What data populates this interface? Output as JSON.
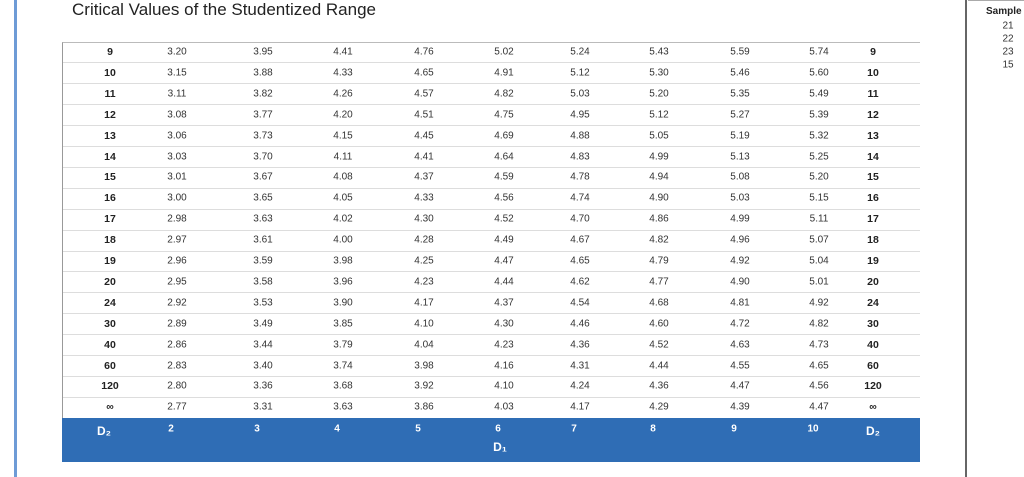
{
  "title": "Critical Values of the Studentized Range",
  "table": {
    "rows": [
      {
        "df": "9",
        "values": [
          "3.20",
          "3.95",
          "4.41",
          "4.76",
          "5.02",
          "5.24",
          "5.43",
          "5.59",
          "5.74"
        ]
      },
      {
        "df": "10",
        "values": [
          "3.15",
          "3.88",
          "4.33",
          "4.65",
          "4.91",
          "5.12",
          "5.30",
          "5.46",
          "5.60"
        ]
      },
      {
        "df": "11",
        "values": [
          "3.11",
          "3.82",
          "4.26",
          "4.57",
          "4.82",
          "5.03",
          "5.20",
          "5.35",
          "5.49"
        ]
      },
      {
        "df": "12",
        "values": [
          "3.08",
          "3.77",
          "4.20",
          "4.51",
          "4.75",
          "4.95",
          "5.12",
          "5.27",
          "5.39"
        ]
      },
      {
        "df": "13",
        "values": [
          "3.06",
          "3.73",
          "4.15",
          "4.45",
          "4.69",
          "4.88",
          "5.05",
          "5.19",
          "5.32"
        ]
      },
      {
        "df": "14",
        "values": [
          "3.03",
          "3.70",
          "4.11",
          "4.41",
          "4.64",
          "4.83",
          "4.99",
          "5.13",
          "5.25"
        ]
      },
      {
        "df": "15",
        "values": [
          "3.01",
          "3.67",
          "4.08",
          "4.37",
          "4.59",
          "4.78",
          "4.94",
          "5.08",
          "5.20"
        ]
      },
      {
        "df": "16",
        "values": [
          "3.00",
          "3.65",
          "4.05",
          "4.33",
          "4.56",
          "4.74",
          "4.90",
          "5.03",
          "5.15"
        ]
      },
      {
        "df": "17",
        "values": [
          "2.98",
          "3.63",
          "4.02",
          "4.30",
          "4.52",
          "4.70",
          "4.86",
          "4.99",
          "5.11"
        ]
      },
      {
        "df": "18",
        "values": [
          "2.97",
          "3.61",
          "4.00",
          "4.28",
          "4.49",
          "4.67",
          "4.82",
          "4.96",
          "5.07"
        ]
      },
      {
        "df": "19",
        "values": [
          "2.96",
          "3.59",
          "3.98",
          "4.25",
          "4.47",
          "4.65",
          "4.79",
          "4.92",
          "5.04"
        ]
      },
      {
        "df": "20",
        "values": [
          "2.95",
          "3.58",
          "3.96",
          "4.23",
          "4.44",
          "4.62",
          "4.77",
          "4.90",
          "5.01"
        ]
      },
      {
        "df": "24",
        "values": [
          "2.92",
          "3.53",
          "3.90",
          "4.17",
          "4.37",
          "4.54",
          "4.68",
          "4.81",
          "4.92"
        ]
      },
      {
        "df": "30",
        "values": [
          "2.89",
          "3.49",
          "3.85",
          "4.10",
          "4.30",
          "4.46",
          "4.60",
          "4.72",
          "4.82"
        ]
      },
      {
        "df": "40",
        "values": [
          "2.86",
          "3.44",
          "3.79",
          "4.04",
          "4.23",
          "4.36",
          "4.52",
          "4.63",
          "4.73"
        ]
      },
      {
        "df": "60",
        "values": [
          "2.83",
          "3.40",
          "3.74",
          "3.98",
          "4.16",
          "4.31",
          "4.44",
          "4.55",
          "4.65"
        ]
      },
      {
        "df": "120",
        "values": [
          "2.80",
          "3.36",
          "3.68",
          "3.92",
          "4.10",
          "4.24",
          "4.36",
          "4.47",
          "4.56"
        ]
      },
      {
        "df": "∞",
        "values": [
          "2.77",
          "3.31",
          "3.63",
          "3.86",
          "4.03",
          "4.17",
          "4.29",
          "4.39",
          "4.47"
        ]
      }
    ],
    "footer": {
      "row_label": "D₂",
      "columns": [
        "2",
        "3",
        "4",
        "5",
        "6",
        "7",
        "8",
        "9",
        "10"
      ],
      "column_label": "D₁"
    }
  },
  "sidebar": {
    "title": "Sample",
    "items": [
      "21",
      "22",
      "23",
      "15"
    ]
  }
}
